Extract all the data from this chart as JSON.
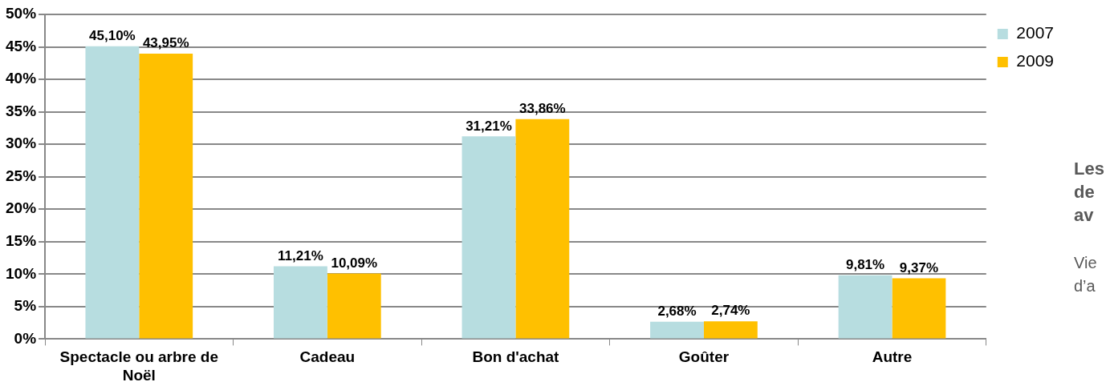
{
  "chart_data": {
    "type": "bar",
    "categories": [
      "Spectacle ou arbre de Noël",
      "Cadeau",
      "Bon d'achat",
      "Goûter",
      "Autre"
    ],
    "series": [
      {
        "name": "2007",
        "color": "#b7dde0",
        "values": [
          45.1,
          11.21,
          31.21,
          2.68,
          9.81
        ],
        "value_labels": [
          "45,10%",
          "11,21%",
          "31,21%",
          "2,68%",
          "9,81%"
        ]
      },
      {
        "name": "2009",
        "color": "#ffc000",
        "values": [
          43.95,
          10.09,
          33.86,
          2.74,
          9.37
        ],
        "value_labels": [
          "43,95%",
          "10,09%",
          "33,86%",
          "2,74%",
          "9,37%"
        ]
      }
    ],
    "ylim": [
      0,
      50
    ],
    "yticks": [
      {
        "value": 0,
        "label": "0%"
      },
      {
        "value": 5,
        "label": "5%"
      },
      {
        "value": 10,
        "label": "10%"
      },
      {
        "value": 15,
        "label": "15%"
      },
      {
        "value": 20,
        "label": "20%"
      },
      {
        "value": 25,
        "label": "25%"
      },
      {
        "value": 30,
        "label": "30%"
      },
      {
        "value": 35,
        "label": "35%"
      },
      {
        "value": 40,
        "label": "40%"
      },
      {
        "value": 45,
        "label": "45%"
      },
      {
        "value": 50,
        "label": "50%"
      }
    ],
    "grid": "y",
    "legend": "right",
    "annotations": [
      "Les",
      "de",
      "av",
      "Vie",
      "d’a"
    ]
  }
}
